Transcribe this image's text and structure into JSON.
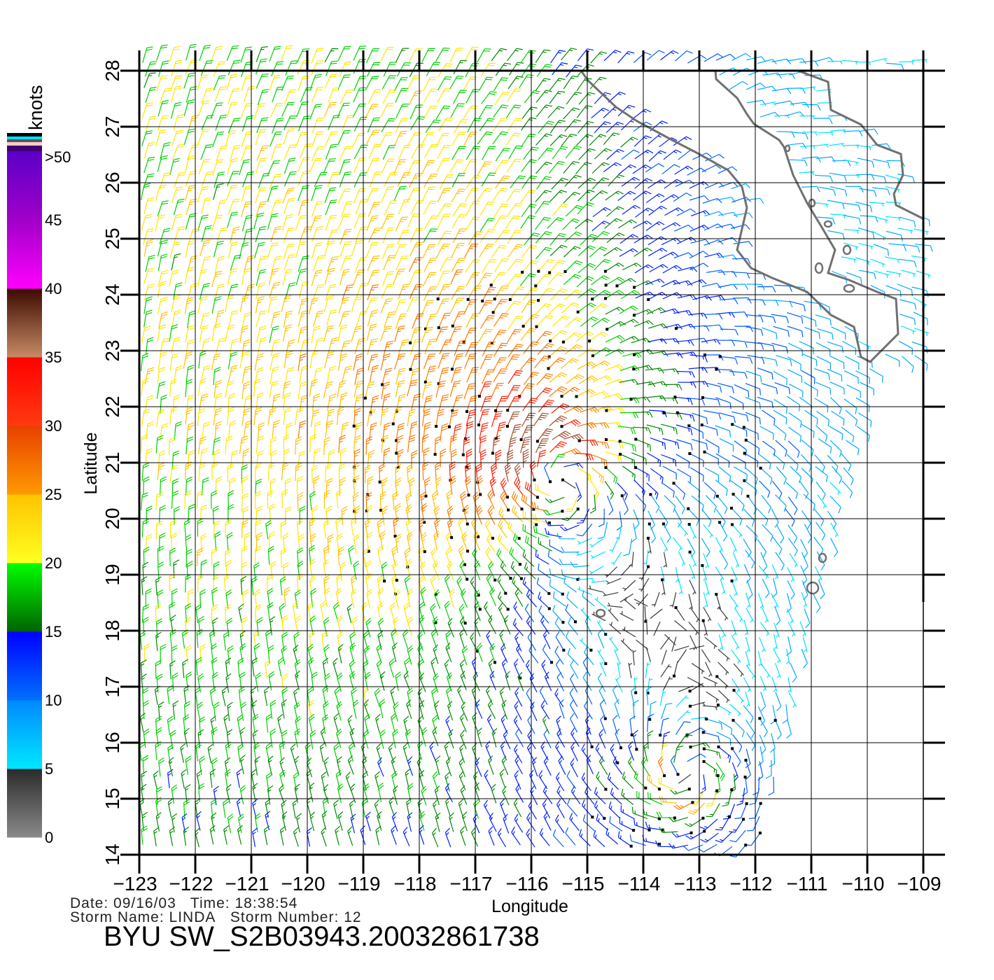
{
  "chart_data": {
    "type": "wind-barb",
    "title": "BYU SW_S2B03943.20032861738",
    "xlabel": "Longitude",
    "ylabel": "Latitude",
    "xlim": [
      -123,
      -109
    ],
    "ylim": [
      14,
      28
    ],
    "x_ticks": [
      "-123",
      "-122",
      "-121",
      "-120",
      "-119",
      "-118",
      "-117",
      "-116",
      "-115",
      "-114",
      "-113",
      "-112",
      "-111",
      "-110",
      "-109"
    ],
    "y_ticks": [
      "28",
      "27",
      "26",
      "25",
      "24",
      "23",
      "22",
      "21",
      "20",
      "19",
      "18",
      "17",
      "16",
      "15",
      "14"
    ],
    "grid": true,
    "colorbar": {
      "unit_label": "knots",
      "tick_labels": [
        ">50",
        "45",
        "40",
        "35",
        "30",
        "25",
        "20",
        "15",
        "10",
        "5",
        "0"
      ],
      "bands": [
        {
          "range": [
            0,
            5
          ],
          "colors": [
            "#8a8a8a",
            "#2a2a2a"
          ]
        },
        {
          "range": [
            5,
            10
          ],
          "colors": [
            "#00e8ff",
            "#0088ff"
          ]
        },
        {
          "range": [
            10,
            15
          ],
          "colors": [
            "#0070ff",
            "#0000ff"
          ]
        },
        {
          "range": [
            15,
            20
          ],
          "colors": [
            "#006400",
            "#00ff00"
          ]
        },
        {
          "range": [
            20,
            25
          ],
          "colors": [
            "#ffff20",
            "#ffc400"
          ]
        },
        {
          "range": [
            25,
            30
          ],
          "colors": [
            "#ff9a00",
            "#e84000"
          ]
        },
        {
          "range": [
            30,
            35
          ],
          "colors": [
            "#ff3a10",
            "#ff0000"
          ]
        },
        {
          "range": [
            35,
            40
          ],
          "colors": [
            "#c88a64",
            "#3a0a00"
          ]
        },
        {
          "range": [
            40,
            45
          ],
          "colors": [
            "#ff00ff",
            "#a000c8"
          ]
        },
        {
          "range": [
            45,
            50
          ],
          "colors": [
            "#a000c8",
            "#5a00c8"
          ]
        }
      ]
    },
    "storm": {
      "center_lon": -115.6,
      "center_lat": 20.8,
      "max_wind_knots": 33,
      "secondary_center_lon": -113.2,
      "secondary_center_lat": 15.4
    },
    "background_flow": {
      "from_direction": "NNE",
      "speed_knots": 13
    }
  },
  "footer": {
    "date_label": "Date:",
    "date": "09/16/03",
    "time_label": "Time:",
    "time": "18:38:54",
    "storm_name_label": "Storm Name:",
    "storm_name": "LINDA",
    "storm_number_label": "Storm Number:",
    "storm_number": "12"
  },
  "colors": {
    "land_outline": "#707070",
    "grid": "#000000",
    "rain_flag": "#000000"
  }
}
